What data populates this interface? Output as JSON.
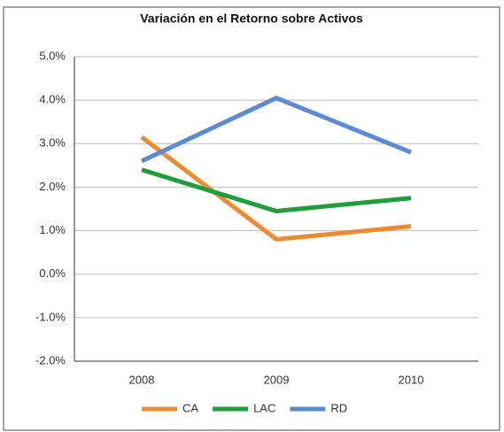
{
  "chart_data": {
    "type": "line",
    "title": "Variación en el Retorno sobre Activos",
    "categories": [
      "2008",
      "2009",
      "2010"
    ],
    "series": [
      {
        "name": "CA",
        "color": "#f08a30",
        "values": [
          3.15,
          0.8,
          1.1
        ]
      },
      {
        "name": "LAC",
        "color": "#1f9e3c",
        "values": [
          2.4,
          1.45,
          1.75
        ]
      },
      {
        "name": "RD",
        "color": "#5b8bd4",
        "values": [
          2.6,
          4.05,
          2.8
        ]
      }
    ],
    "ylim": [
      -2,
      5
    ],
    "yticks": [
      {
        "value": 5,
        "label": "5.0%"
      },
      {
        "value": 4,
        "label": "4.0%"
      },
      {
        "value": 3,
        "label": "3.0%"
      },
      {
        "value": 2,
        "label": "2.0%"
      },
      {
        "value": 1,
        "label": "1.0%"
      },
      {
        "value": 0,
        "label": "0.0%"
      },
      {
        "value": -1,
        "label": "-1.0%"
      },
      {
        "value": -2,
        "label": "-2.0%"
      }
    ],
    "grid": true,
    "legend": "bottom"
  }
}
